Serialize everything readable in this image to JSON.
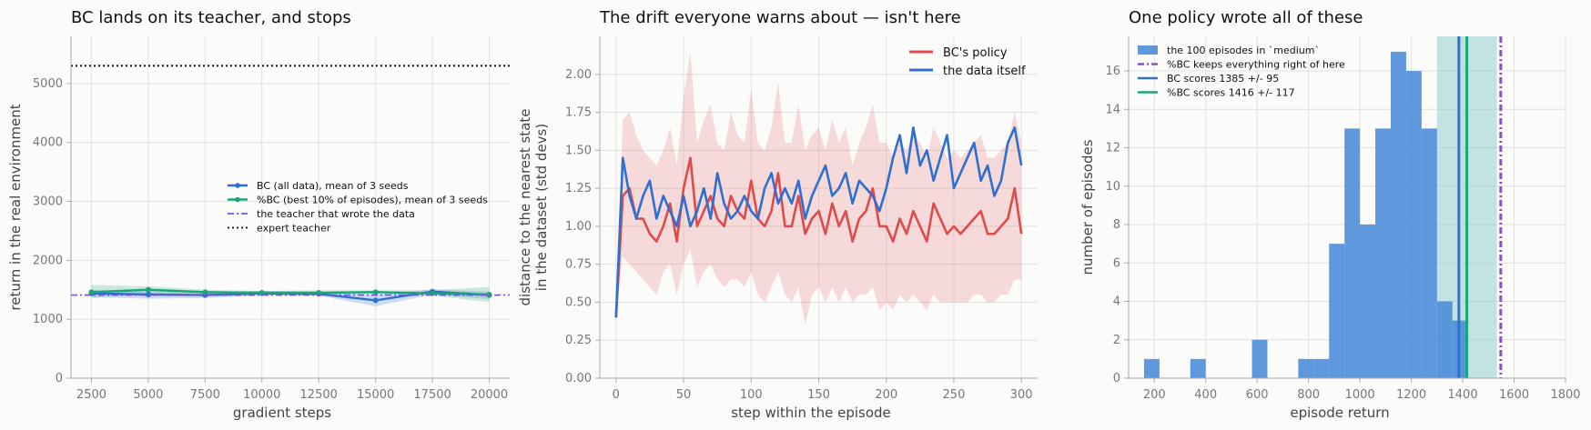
{
  "chart_data": [
    {
      "type": "line",
      "title": "BC lands on its teacher, and stops",
      "xlabel": "gradient steps",
      "ylabel": "return in the real environment",
      "xlim": [
        1600,
        20900
      ],
      "ylim": [
        0,
        5800
      ],
      "xticks": [
        2500,
        5000,
        7500,
        10000,
        12500,
        15000,
        17500,
        20000
      ],
      "yticks": [
        0,
        1000,
        2000,
        3000,
        4000,
        5000
      ],
      "grid": true,
      "legend_position": "center-right",
      "x": [
        2500,
        5000,
        7500,
        10000,
        12500,
        15000,
        17500,
        20000
      ],
      "series": [
        {
          "name": "BC (all data), mean of 3 seeds",
          "color": "#2f6fd0",
          "marker": "circle",
          "values": [
            1440,
            1420,
            1410,
            1440,
            1430,
            1320,
            1470,
            1410
          ],
          "band_low": [
            1370,
            1350,
            1360,
            1400,
            1400,
            1220,
            1420,
            1340
          ],
          "band_high": [
            1500,
            1470,
            1460,
            1480,
            1470,
            1420,
            1510,
            1470
          ]
        },
        {
          "name": "%BC (best 10% of episodes), mean of 3 seeds",
          "color": "#1aa57a",
          "marker": "circle",
          "values": [
            1460,
            1500,
            1460,
            1450,
            1450,
            1460,
            1440,
            1420
          ],
          "band_low": [
            1360,
            1440,
            1420,
            1420,
            1420,
            1430,
            1400,
            1290
          ],
          "band_high": [
            1580,
            1560,
            1500,
            1480,
            1490,
            1490,
            1490,
            1550
          ]
        },
        {
          "name": "the teacher that wrote the data",
          "color": "#7b52d6",
          "style": "dash-dot",
          "value": 1410
        },
        {
          "name": "expert teacher",
          "color": "#111111",
          "style": "dotted",
          "value": 5300
        }
      ]
    },
    {
      "type": "line",
      "title": "The drift everyone warns about — isn't here",
      "xlabel": "step within the episode",
      "ylabel": "distance to the nearest state in the dataset (std devs)",
      "ylabel_lines": [
        "distance to the nearest state",
        "in the dataset (std devs)"
      ],
      "xlim": [
        -12,
        312
      ],
      "ylim": [
        0,
        2.25
      ],
      "xticks": [
        0,
        50,
        100,
        150,
        200,
        250,
        300
      ],
      "yticks": [
        "0.00",
        "0.25",
        "0.50",
        "0.75",
        "1.00",
        "1.25",
        "1.50",
        "1.75",
        "2.00"
      ],
      "grid": true,
      "legend_position": "top-right",
      "x_step": 5,
      "series": [
        {
          "name": "BC's policy",
          "color": "#e04a4a",
          "values": [
            0.4,
            1.2,
            1.25,
            1.05,
            1.05,
            0.95,
            0.9,
            1.0,
            1.15,
            0.9,
            1.25,
            1.45,
            1.0,
            1.1,
            1.2,
            1.05,
            1.0,
            1.2,
            1.1,
            1.05,
            1.3,
            1.05,
            1.0,
            1.1,
            1.35,
            1.0,
            1.0,
            1.2,
            0.95,
            1.05,
            1.1,
            0.95,
            1.15,
            1.0,
            1.1,
            0.9,
            1.05,
            1.1,
            1.25,
            1.0,
            1.0,
            0.9,
            1.05,
            0.95,
            1.1,
            1.0,
            0.9,
            1.15,
            1.05,
            0.95,
            1.0,
            0.95,
            1.0,
            1.05,
            1.1,
            0.95,
            0.95,
            1.0,
            1.05,
            1.25,
            0.95
          ],
          "band_low": [
            0.4,
            0.8,
            0.75,
            0.7,
            0.65,
            0.6,
            0.55,
            0.7,
            0.75,
            0.55,
            0.75,
            0.85,
            0.6,
            0.7,
            0.75,
            0.65,
            0.6,
            0.65,
            0.65,
            0.6,
            0.7,
            0.55,
            0.5,
            0.6,
            0.7,
            0.55,
            0.5,
            0.6,
            0.35,
            0.55,
            0.6,
            0.5,
            0.6,
            0.5,
            0.6,
            0.5,
            0.55,
            0.55,
            0.6,
            0.45,
            0.5,
            0.45,
            0.55,
            0.5,
            0.55,
            0.5,
            0.45,
            0.55,
            0.5,
            0.5,
            0.5,
            0.5,
            0.5,
            0.55,
            0.55,
            0.5,
            0.5,
            0.55,
            0.55,
            0.65,
            0.65
          ],
          "band_high": [
            0.4,
            1.7,
            1.75,
            1.6,
            1.5,
            1.45,
            1.4,
            1.5,
            1.65,
            1.4,
            1.85,
            2.15,
            1.55,
            1.7,
            1.8,
            1.55,
            1.5,
            1.75,
            1.6,
            1.55,
            1.9,
            1.55,
            1.5,
            1.65,
            1.95,
            1.55,
            1.55,
            1.8,
            1.5,
            1.6,
            1.65,
            1.5,
            1.7,
            1.55,
            1.65,
            1.4,
            1.55,
            1.65,
            1.8,
            1.55,
            1.55,
            1.45,
            1.55,
            1.5,
            1.6,
            1.55,
            1.45,
            1.65,
            1.55,
            1.45,
            1.5,
            1.45,
            1.5,
            1.55,
            1.6,
            1.45,
            1.45,
            1.5,
            1.55,
            1.75,
            1.55
          ]
        },
        {
          "name": "the data itself",
          "color": "#2f6fd0",
          "values": [
            0.4,
            1.45,
            1.2,
            1.05,
            1.2,
            1.3,
            1.05,
            1.2,
            1.1,
            1.0,
            1.2,
            1.0,
            1.1,
            1.25,
            1.05,
            1.35,
            1.15,
            1.05,
            1.1,
            1.2,
            1.1,
            1.05,
            1.25,
            1.35,
            1.15,
            1.25,
            1.15,
            1.3,
            1.05,
            1.2,
            1.3,
            1.4,
            1.2,
            1.25,
            1.35,
            1.15,
            1.3,
            1.25,
            1.2,
            1.1,
            1.25,
            1.45,
            1.6,
            1.35,
            1.65,
            1.4,
            1.5,
            1.3,
            1.45,
            1.6,
            1.25,
            1.35,
            1.45,
            1.55,
            1.3,
            1.4,
            1.2,
            1.3,
            1.55,
            1.65,
            1.4
          ]
        }
      ]
    },
    {
      "type": "histogram",
      "title": "One policy wrote all of these",
      "xlabel": "episode return",
      "ylabel": "number of episodes",
      "xlim": [
        1095,
        1805
      ],
      "ylim": [
        0,
        17.8
      ],
      "xticks": [
        200,
        400,
        600,
        800,
        1000,
        1200,
        1400,
        1600,
        1800
      ],
      "yticks": [
        0,
        2,
        4,
        6,
        8,
        10,
        12,
        14,
        16
      ],
      "grid": true,
      "legend_position": "top-left",
      "bin_edges_start": 160,
      "bin_width": 60,
      "counts": [
        1,
        0,
        0,
        1,
        0,
        0,
        0,
        2,
        0,
        0,
        1,
        1,
        7,
        13,
        8,
        13,
        17,
        16,
        13,
        4,
        3
      ],
      "bars_label": "the 100 episodes in `medium`",
      "bar_color": "#4a8ad8",
      "band": {
        "low": 1300,
        "high": 1533,
        "color": "#7cc6c8"
      },
      "lines": [
        {
          "name": "%BC keeps everything right of here",
          "value": 1548,
          "color": "#8b4fd0",
          "style": "dash-dot"
        },
        {
          "name": "BC scores 1385 +/- 95",
          "value": 1385,
          "color": "#2f6fd0",
          "style": "solid"
        },
        {
          "name": "%BC scores 1416 +/- 117",
          "value": 1416,
          "color": "#1aa57a",
          "style": "solid"
        }
      ]
    }
  ]
}
